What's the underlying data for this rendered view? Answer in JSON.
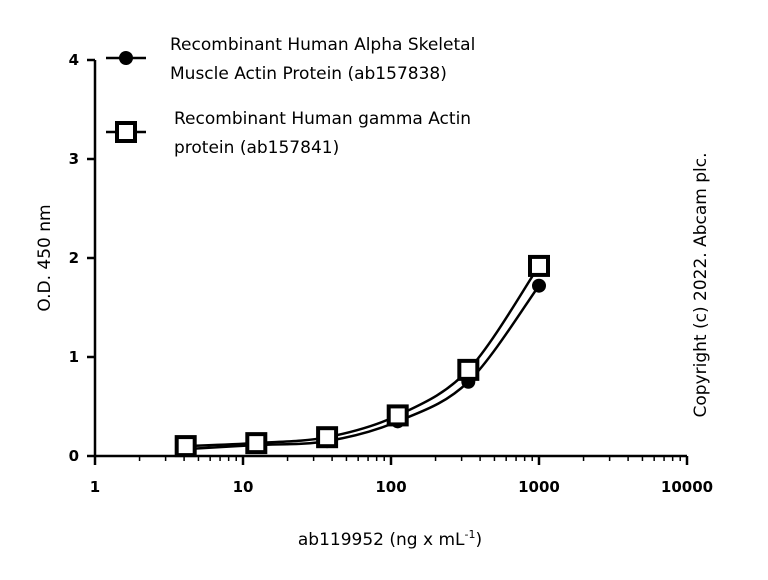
{
  "chart_data": {
    "type": "scatter",
    "xlabel": "ab119952 (ng x mL",
    "xlabel_superscript": "-1",
    "xlabel_suffix": ")",
    "ylabel": "O.D. 450 nm",
    "xscale": "log",
    "xlim": [
      1,
      10000
    ],
    "ylim": [
      0,
      4
    ],
    "x_ticks": [
      1,
      10,
      100,
      1000,
      10000
    ],
    "x_tick_labels": [
      "1",
      "10",
      "100",
      "1000",
      "10000"
    ],
    "y_ticks": [
      0,
      1,
      2,
      3,
      4
    ],
    "y_tick_labels": [
      "0",
      "1",
      "2",
      "3",
      "4"
    ],
    "grid": false,
    "legend_position": "top-left",
    "series": [
      {
        "name_lines": [
          "Recombinant Human Alpha Skeletal",
          "Muscle Actin Protein (ab157838)"
        ],
        "marker": "filled-circle",
        "color": "#000000",
        "x": [
          4.1,
          12.3,
          37,
          111,
          333,
          1000
        ],
        "y": [
          0.07,
          0.11,
          0.15,
          0.35,
          0.75,
          1.72
        ]
      },
      {
        "name_lines": [
          "Recombinant Human gamma Actin",
          "protein (ab157841)"
        ],
        "marker": "open-square",
        "color": "#000000",
        "x": [
          4.1,
          12.3,
          37,
          111,
          333,
          1000
        ],
        "y": [
          0.1,
          0.13,
          0.19,
          0.41,
          0.87,
          1.92
        ]
      }
    ]
  },
  "copyright": "Copyright (c) 2022. Abcam plc."
}
